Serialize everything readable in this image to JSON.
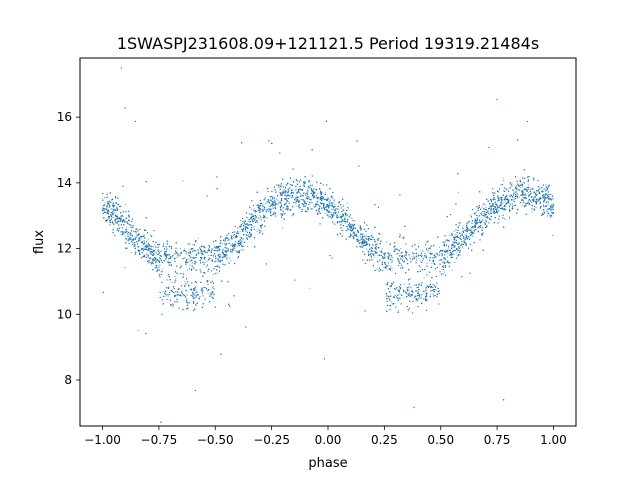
{
  "chart_data": {
    "type": "scatter",
    "title": "1SWASPJ231608.09+121121.5 Period 19319.21484s",
    "xlabel": "phase",
    "ylabel": "flux",
    "xlim": [
      -1.1,
      1.1
    ],
    "ylim": [
      6.6,
      17.8
    ],
    "xticks": [
      -1.0,
      -0.75,
      -0.5,
      -0.25,
      0.0,
      0.25,
      0.5,
      0.75,
      1.0
    ],
    "xtick_labels": [
      "−1.00",
      "−0.75",
      "−0.50",
      "−0.25",
      "0.00",
      "0.25",
      "0.50",
      "0.75",
      "1.00"
    ],
    "yticks": [
      8,
      10,
      12,
      14,
      16
    ],
    "ytick_labels": [
      "8",
      "10",
      "12",
      "14",
      "16"
    ],
    "grid": false,
    "point_color": "#1f77b4",
    "model": {
      "phase_range": [
        -1.0,
        1.0
      ],
      "mean_flux": 12.5,
      "amplitude": 1.12,
      "max_phase": -0.125,
      "period_phase": 1.0,
      "min_phase_centers": [
        -0.625,
        0.375
      ],
      "lower_branch_min_flux": 10.6,
      "upper_branch_min_flux": 11.75,
      "scatter_sigma": 0.25
    },
    "series": [
      {
        "n_points": 12000
      }
    ]
  }
}
